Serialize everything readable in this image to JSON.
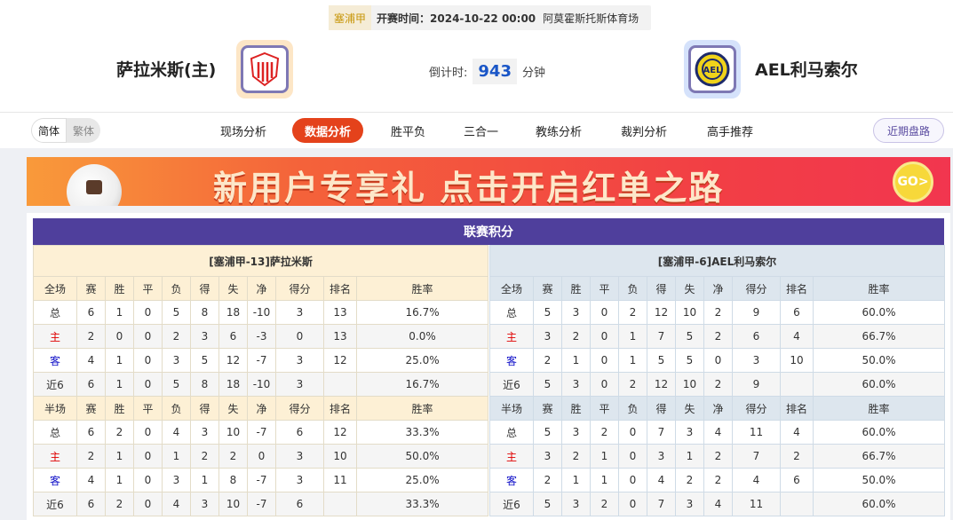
{
  "match": {
    "league": "塞浦甲",
    "time_label": "开赛时间：2024-10-22 00:00",
    "venue": "阿莫霍斯托斯体育场",
    "home": "萨拉米斯(主)",
    "away": "AEL利马索尔",
    "countdown_label": "倒计时:",
    "countdown": "943",
    "countdown_unit": "分钟"
  },
  "lang": {
    "simplified": "简体",
    "traditional": "繁体"
  },
  "tabs": [
    {
      "label": "现场分析"
    },
    {
      "label": "数据分析",
      "active": true
    },
    {
      "label": "胜平负"
    },
    {
      "label": "三合一"
    },
    {
      "label": "教练分析"
    },
    {
      "label": "裁判分析"
    },
    {
      "label": "高手推荐"
    }
  ],
  "recent_button": "近期盘路",
  "banner": {
    "text": "新用户专享礼  点击开启红单之路",
    "go": "GO>"
  },
  "standings": {
    "title": "联赛积分",
    "columns_full": [
      "全场",
      "赛",
      "胜",
      "平",
      "负",
      "得",
      "失",
      "净",
      "得分",
      "排名",
      "胜率"
    ],
    "columns_half": [
      "半场",
      "赛",
      "胜",
      "平",
      "负",
      "得",
      "失",
      "净",
      "得分",
      "排名",
      "胜率"
    ],
    "home": {
      "header": "[塞浦甲-13]萨拉米斯",
      "full": [
        [
          "总",
          "6",
          "1",
          "0",
          "5",
          "8",
          "18",
          "-10",
          "3",
          "13",
          "16.7%"
        ],
        [
          "主",
          "2",
          "0",
          "0",
          "2",
          "3",
          "6",
          "-3",
          "0",
          "13",
          "0.0%"
        ],
        [
          "客",
          "4",
          "1",
          "0",
          "3",
          "5",
          "12",
          "-7",
          "3",
          "12",
          "25.0%"
        ],
        [
          "近6",
          "6",
          "1",
          "0",
          "5",
          "8",
          "18",
          "-10",
          "3",
          "",
          "16.7%"
        ]
      ],
      "half": [
        [
          "总",
          "6",
          "2",
          "0",
          "4",
          "3",
          "10",
          "-7",
          "6",
          "12",
          "33.3%"
        ],
        [
          "主",
          "2",
          "1",
          "0",
          "1",
          "2",
          "2",
          "0",
          "3",
          "10",
          "50.0%"
        ],
        [
          "客",
          "4",
          "1",
          "0",
          "3",
          "1",
          "8",
          "-7",
          "3",
          "11",
          "25.0%"
        ],
        [
          "近6",
          "6",
          "2",
          "0",
          "4",
          "3",
          "10",
          "-7",
          "6",
          "",
          "33.3%"
        ]
      ]
    },
    "away": {
      "header": "[塞浦甲-6]AEL利马索尔",
      "full": [
        [
          "总",
          "5",
          "3",
          "0",
          "2",
          "12",
          "10",
          "2",
          "9",
          "6",
          "60.0%"
        ],
        [
          "主",
          "3",
          "2",
          "0",
          "1",
          "7",
          "5",
          "2",
          "6",
          "4",
          "66.7%"
        ],
        [
          "客",
          "2",
          "1",
          "0",
          "1",
          "5",
          "5",
          "0",
          "3",
          "10",
          "50.0%"
        ],
        [
          "近6",
          "5",
          "3",
          "0",
          "2",
          "12",
          "10",
          "2",
          "9",
          "",
          "60.0%"
        ]
      ],
      "half": [
        [
          "总",
          "5",
          "3",
          "2",
          "0",
          "7",
          "3",
          "4",
          "11",
          "4",
          "60.0%"
        ],
        [
          "主",
          "3",
          "2",
          "1",
          "0",
          "3",
          "1",
          "2",
          "7",
          "2",
          "66.7%"
        ],
        [
          "客",
          "2",
          "1",
          "1",
          "0",
          "4",
          "2",
          "2",
          "4",
          "6",
          "50.0%"
        ],
        [
          "近6",
          "5",
          "3",
          "2",
          "0",
          "7",
          "3",
          "4",
          "11",
          "",
          "60.0%"
        ]
      ]
    }
  },
  "colors": {
    "accent": "#e4421b",
    "title_bar": "#4f3f9c",
    "home_label": "#e00000",
    "away_label": "#1010c8"
  }
}
